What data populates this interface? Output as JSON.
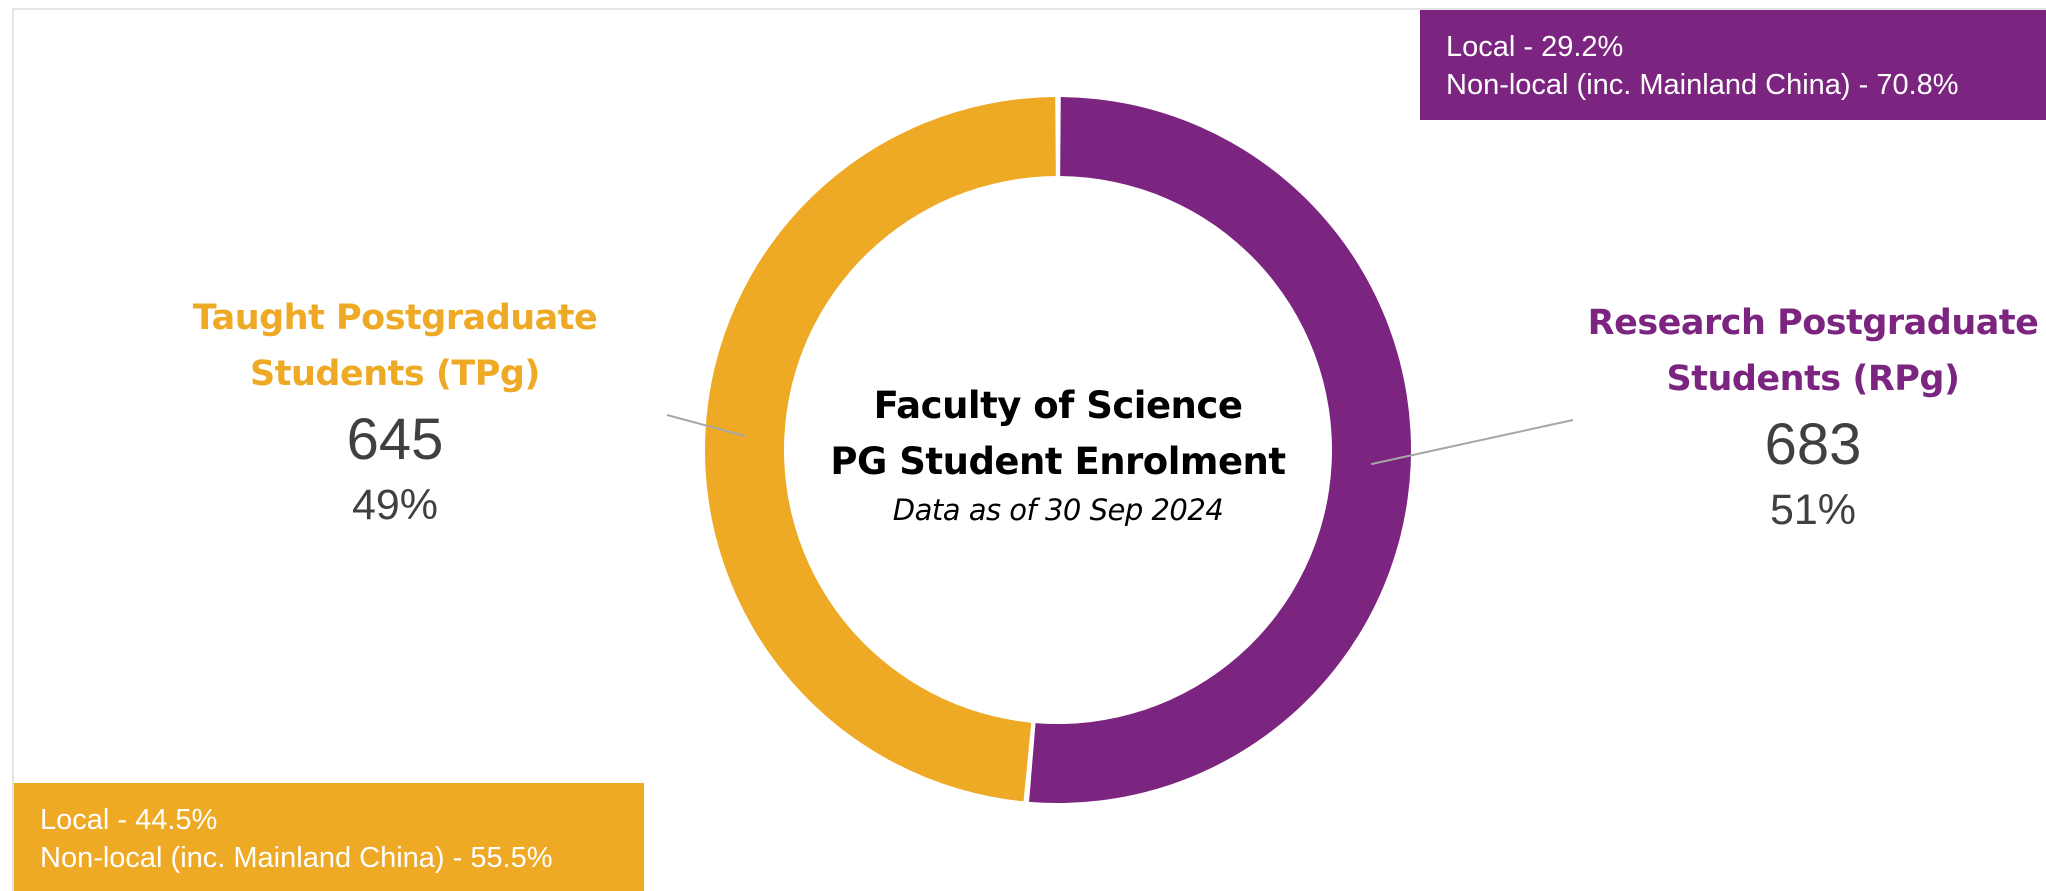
{
  "chart_data": {
    "type": "pie",
    "variant": "donut",
    "title": "Faculty of Science PG Student Enrolment",
    "title_lines": [
      "Faculty of Science",
      "PG Student Enrolment"
    ],
    "subtitle": "Data as of 30 Sep 2024",
    "categories": [
      "Taught Postgraduate Students (TPg)",
      "Research Postgraduate Students (RPg)"
    ],
    "values": [
      645,
      683
    ],
    "percent_labels": [
      "49%",
      "51%"
    ],
    "colors": [
      "#eea925",
      "#7b2480"
    ],
    "segments": [
      {
        "name": "Taught Postgraduate Students (TPg)",
        "label_lines": [
          "Taught Postgraduate",
          "Students (TPg)"
        ],
        "value": 645,
        "value_label": "645",
        "percent_label": "49%",
        "color": "#eea925",
        "side": "left",
        "breakdown": [
          "Local - 44.5%",
          "Non-local (inc. Mainland China) - 55.5%"
        ],
        "breakdown_values": {
          "local": 44.5,
          "non_local": 55.5
        }
      },
      {
        "name": "Research Postgraduate Students (RPg)",
        "label_lines": [
          "Research Postgraduate",
          "Students (RPg)"
        ],
        "value": 683,
        "value_label": "683",
        "percent_label": "51%",
        "color": "#7b2480",
        "side": "right",
        "breakdown": [
          "Local - 29.2%",
          "Non-local (inc. Mainland China) - 70.8%"
        ],
        "breakdown_values": {
          "local": 29.2,
          "non_local": 70.8
        }
      }
    ],
    "leader_line_color": "#a6a6a6"
  }
}
